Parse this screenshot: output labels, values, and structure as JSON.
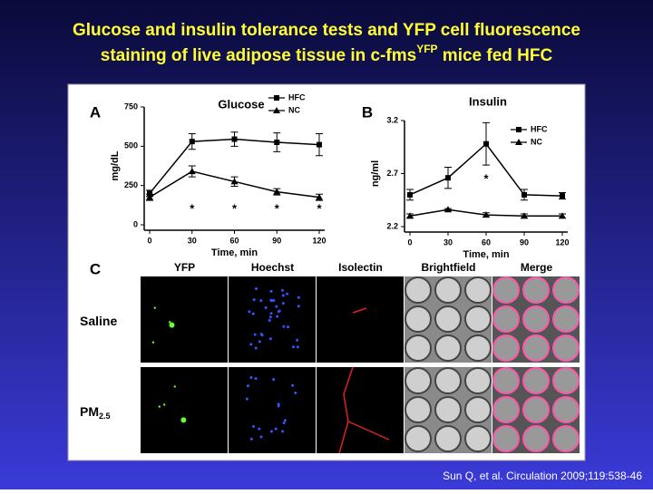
{
  "slide": {
    "title_line1": "Glucose and insulin tolerance tests and YFP cell fluorescence",
    "title_line2_start": "staining of live adipose tissue in c-fms",
    "title_superscript": "YFP",
    "title_line2_end": " mice fed HFC",
    "citation": "Sun Q, et al. Circulation 2009;119:538-46"
  },
  "chart_data": [
    {
      "type": "line",
      "panel": "A",
      "title": "Glucose",
      "y_label": "mg/dL",
      "x_label": "Time, min",
      "x": [
        0,
        30,
        60,
        90,
        120
      ],
      "xlim": [
        0,
        120
      ],
      "xticks": [
        0,
        30,
        60,
        90,
        120
      ],
      "ylim": [
        0,
        750
      ],
      "yticks": [
        0,
        250,
        500,
        750
      ],
      "series": [
        {
          "name": "HFC",
          "color": "#000000",
          "marker": "square",
          "values": [
            200,
            530,
            545,
            525,
            510
          ],
          "errors": [
            20,
            50,
            45,
            60,
            70
          ]
        },
        {
          "name": "NC",
          "color": "#000000",
          "marker": "triangle",
          "values": [
            175,
            340,
            275,
            210,
            175
          ],
          "errors": [
            20,
            35,
            30,
            20,
            20
          ]
        }
      ],
      "annotations": [
        {
          "x": 30,
          "text": "*"
        },
        {
          "x": 60,
          "text": "*"
        },
        {
          "x": 90,
          "text": "*"
        },
        {
          "x": 120,
          "text": "*"
        }
      ]
    },
    {
      "type": "line",
      "panel": "B",
      "title": "Insulin",
      "y_label": "ng/ml",
      "x_label": "Time, min",
      "x": [
        0,
        30,
        60,
        90,
        120
      ],
      "xlim": [
        0,
        120
      ],
      "xticks": [
        0,
        30,
        60,
        90,
        120
      ],
      "ylim": [
        2.2,
        3.2
      ],
      "yticks": [
        2.2,
        2.7,
        3.2
      ],
      "series": [
        {
          "name": "HFC",
          "color": "#000000",
          "marker": "square",
          "values": [
            2.5,
            2.66,
            2.98,
            2.5,
            2.49
          ],
          "errors": [
            0.05,
            0.1,
            0.2,
            0.05,
            0.03
          ]
        },
        {
          "name": "NC",
          "color": "#000000",
          "marker": "triangle",
          "values": [
            2.3,
            2.36,
            2.31,
            2.3,
            2.3
          ],
          "errors": [
            0.02,
            0.01,
            0.02,
            0.02,
            0.02
          ]
        }
      ],
      "annotations": [
        {
          "x": 60,
          "text": "*"
        }
      ]
    }
  ],
  "panel_c": {
    "panel": "C",
    "columns": [
      "YFP",
      "Hoechst",
      "Isolectin",
      "Brightfield",
      "Merge"
    ],
    "rows": [
      {
        "label": "Saline"
      },
      {
        "label": "PM",
        "subscript": "2.5"
      }
    ]
  }
}
